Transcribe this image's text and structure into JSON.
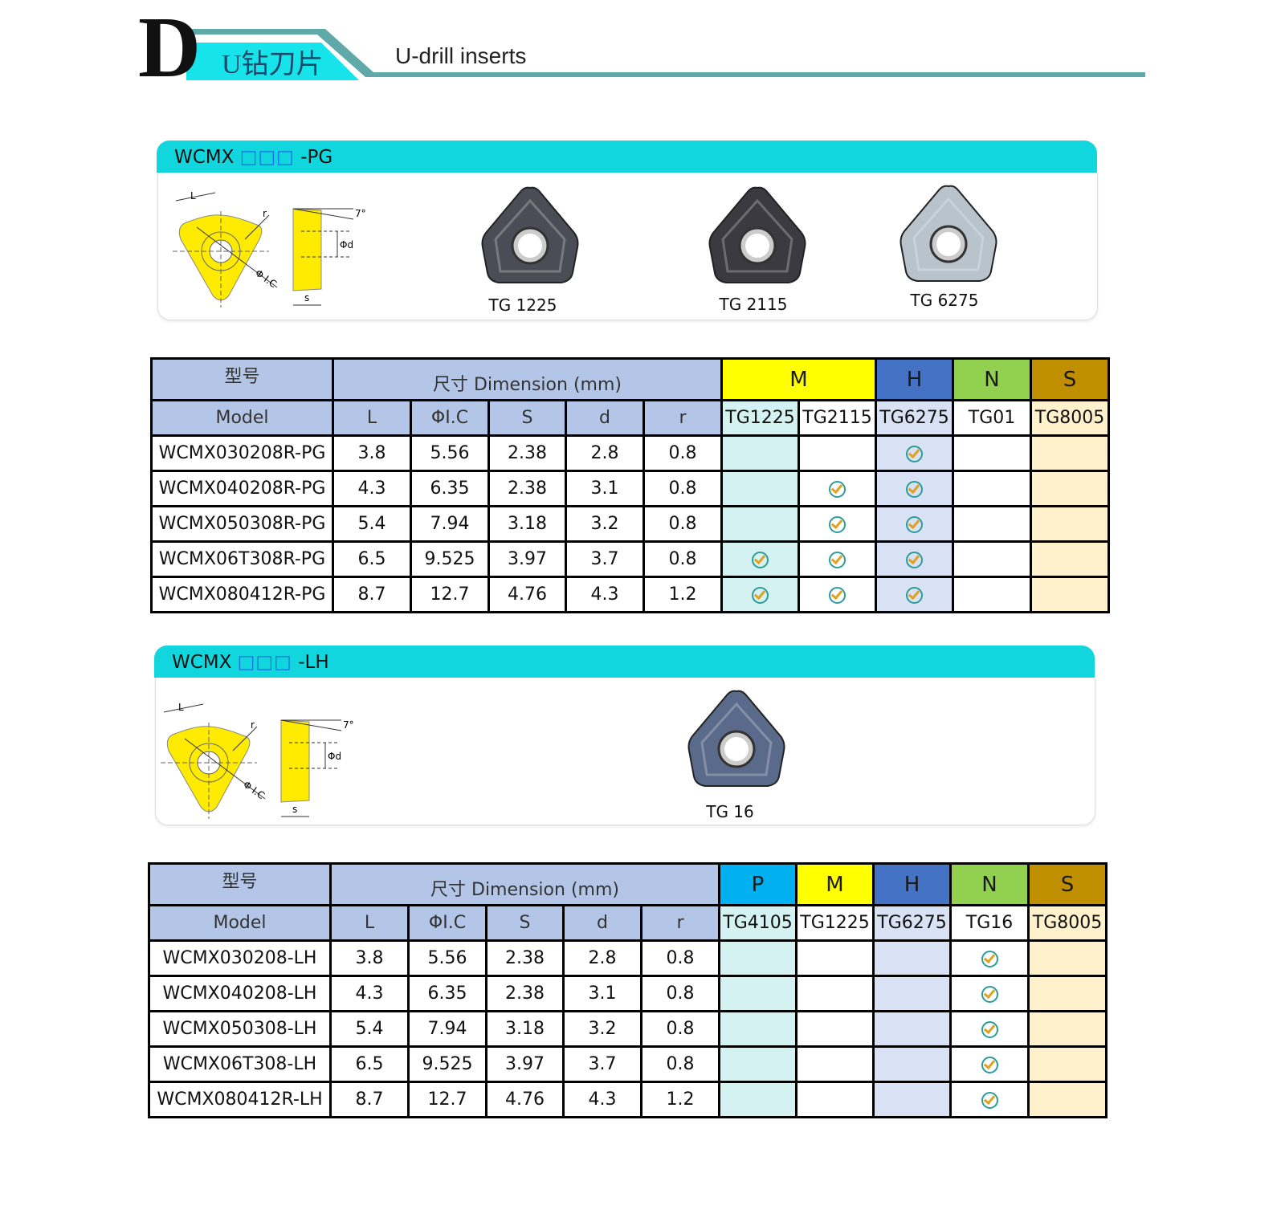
{
  "header": {
    "letter": "D",
    "title_cn": "U钻刀片",
    "title_en": "U-drill inserts"
  },
  "sections": [
    {
      "banner_prefix": "WCMX ",
      "banner_boxes": "□□□",
      "banner_suffix": " -PG",
      "diagram_labels": {
        "L": "L",
        "r": "r",
        "ic": "Φ I.C",
        "angle": "7°",
        "d": "Φd",
        "s": "s"
      },
      "inserts": [
        {
          "label": "TG 1225",
          "color": "#4a4d55"
        },
        {
          "label": "TG 2115",
          "color": "#3a3a40"
        },
        {
          "label": "TG 6275",
          "color": "#b9c3cc"
        }
      ],
      "table": {
        "model_cn": "型号",
        "model_en": "Model",
        "dimension_title": "尺寸 Dimension (mm)",
        "dim_headers": [
          "L",
          "ΦI.C",
          "S",
          "d",
          "r"
        ],
        "groups": [
          {
            "label": "M",
            "span": 2,
            "color": "#ffff00"
          },
          {
            "label": "H",
            "span": 1,
            "color": "#4472c4"
          },
          {
            "label": "N",
            "span": 1,
            "color": "#92d050"
          },
          {
            "label": "S",
            "span": 1,
            "color": "#bf8f00"
          }
        ],
        "grades": [
          {
            "label": "TG1225",
            "tint": "#d4f2f2"
          },
          {
            "label": "TG2115",
            "tint": "#ffffff"
          },
          {
            "label": "TG6275",
            "tint": "#d9e1f4"
          },
          {
            "label": "TG01",
            "tint": "#ffffff"
          },
          {
            "label": "TG8005",
            "tint": "#fff1cc"
          }
        ],
        "rows": [
          {
            "model": "WCMX030208R-PG",
            "dims": [
              "3.8",
              "5.56",
              "2.38",
              "2.8",
              "0.8"
            ],
            "avail": [
              false,
              false,
              true,
              false,
              false
            ]
          },
          {
            "model": "WCMX040208R-PG",
            "dims": [
              "4.3",
              "6.35",
              "2.38",
              "3.1",
              "0.8"
            ],
            "avail": [
              false,
              true,
              true,
              false,
              false
            ]
          },
          {
            "model": "WCMX050308R-PG",
            "dims": [
              "5.4",
              "7.94",
              "3.18",
              "3.2",
              "0.8"
            ],
            "avail": [
              false,
              true,
              true,
              false,
              false
            ]
          },
          {
            "model": "WCMX06T308R-PG",
            "dims": [
              "6.5",
              "9.525",
              "3.97",
              "3.7",
              "0.8"
            ],
            "avail": [
              true,
              true,
              true,
              false,
              false
            ]
          },
          {
            "model": "WCMX080412R-PG",
            "dims": [
              "8.7",
              "12.7",
              "4.76",
              "4.3",
              "1.2"
            ],
            "avail": [
              true,
              true,
              true,
              false,
              false
            ]
          }
        ]
      }
    },
    {
      "banner_prefix": "WCMX ",
      "banner_boxes": "□□□",
      "banner_suffix": " -LH",
      "diagram_labels": {
        "L": "L",
        "r": "r",
        "ic": "Φ I.C",
        "angle": "7°",
        "d": "Φd",
        "s": "s"
      },
      "inserts": [
        {
          "label": "TG 16",
          "color": "#5a6a8a"
        }
      ],
      "table": {
        "model_cn": "型号",
        "model_en": "Model",
        "dimension_title": "尺寸 Dimension (mm)",
        "dim_headers": [
          "L",
          "ΦI.C",
          "S",
          "d",
          "r"
        ],
        "groups": [
          {
            "label": "P",
            "span": 1,
            "color": "#00b0f0"
          },
          {
            "label": "M",
            "span": 1,
            "color": "#ffff00"
          },
          {
            "label": "H",
            "span": 1,
            "color": "#4472c4"
          },
          {
            "label": "N",
            "span": 1,
            "color": "#92d050"
          },
          {
            "label": "S",
            "span": 1,
            "color": "#bf8f00"
          }
        ],
        "grades": [
          {
            "label": "TG4105",
            "tint": "#d4f2f2"
          },
          {
            "label": "TG1225",
            "tint": "#ffffff"
          },
          {
            "label": "TG6275",
            "tint": "#d9e1f4"
          },
          {
            "label": "TG16",
            "tint": "#ffffff"
          },
          {
            "label": "TG8005",
            "tint": "#fff1cc"
          }
        ],
        "rows": [
          {
            "model": "WCMX030208-LH",
            "dims": [
              "3.8",
              "5.56",
              "2.38",
              "2.8",
              "0.8"
            ],
            "avail": [
              false,
              false,
              false,
              true,
              false
            ]
          },
          {
            "model": "WCMX040208-LH",
            "dims": [
              "4.3",
              "6.35",
              "2.38",
              "3.1",
              "0.8"
            ],
            "avail": [
              false,
              false,
              false,
              true,
              false
            ]
          },
          {
            "model": "WCMX050308-LH",
            "dims": [
              "5.4",
              "7.94",
              "3.18",
              "3.2",
              "0.8"
            ],
            "avail": [
              false,
              false,
              false,
              true,
              false
            ]
          },
          {
            "model": "WCMX06T308-LH",
            "dims": [
              "6.5",
              "9.525",
              "3.97",
              "3.7",
              "0.8"
            ],
            "avail": [
              false,
              false,
              false,
              true,
              false
            ]
          },
          {
            "model": "WCMX080412R-LH",
            "dims": [
              "8.7",
              "12.7",
              "4.76",
              "4.3",
              "1.2"
            ],
            "avail": [
              false,
              false,
              false,
              true,
              false
            ]
          }
        ]
      }
    }
  ]
}
